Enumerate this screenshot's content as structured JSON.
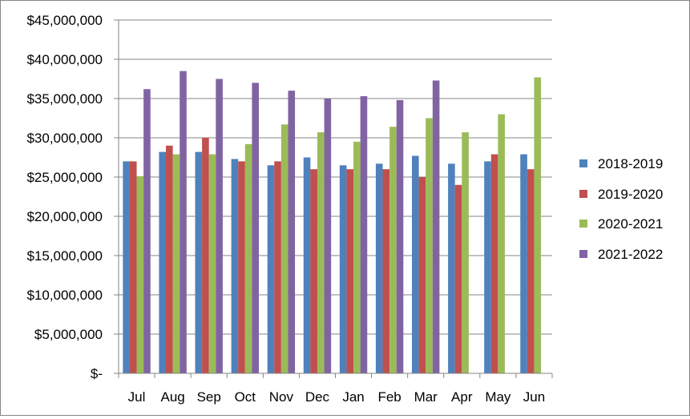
{
  "chart_data": {
    "type": "bar",
    "categories": [
      "Jul",
      "Aug",
      "Sep",
      "Oct",
      "Nov",
      "Dec",
      "Jan",
      "Feb",
      "Mar",
      "Apr",
      "May",
      "Jun"
    ],
    "series": [
      {
        "name": "2018-2019",
        "color": "#4F81BD",
        "values": [
          27000000,
          28200000,
          28200000,
          27300000,
          26500000,
          27500000,
          26500000,
          26700000,
          27700000,
          26700000,
          27000000,
          27900000
        ]
      },
      {
        "name": "2019-2020",
        "color": "#C0504D",
        "values": [
          27000000,
          29000000,
          30000000,
          27000000,
          27000000,
          26000000,
          26000000,
          26000000,
          25000000,
          24000000,
          27900000,
          26000000
        ]
      },
      {
        "name": "2020-2021",
        "color": "#9BBB59",
        "values": [
          25100000,
          27900000,
          27900000,
          29200000,
          31700000,
          30700000,
          29500000,
          31400000,
          32500000,
          30700000,
          33000000,
          37700000
        ]
      },
      {
        "name": "2021-2022",
        "color": "#8064A2",
        "values": [
          36200000,
          38500000,
          37500000,
          37000000,
          36000000,
          35000000,
          35300000,
          34800000,
          37300000,
          null,
          null,
          null
        ]
      }
    ],
    "y_ticks": [
      "$-",
      "$5,000,000",
      "$10,000,000",
      "$15,000,000",
      "$20,000,000",
      "$25,000,000",
      "$30,000,000",
      "$35,000,000",
      "$40,000,000",
      "$45,000,000"
    ],
    "ylim": [
      0,
      45000000
    ],
    "y_step": 5000000,
    "grid": true,
    "legend_position": "right"
  }
}
